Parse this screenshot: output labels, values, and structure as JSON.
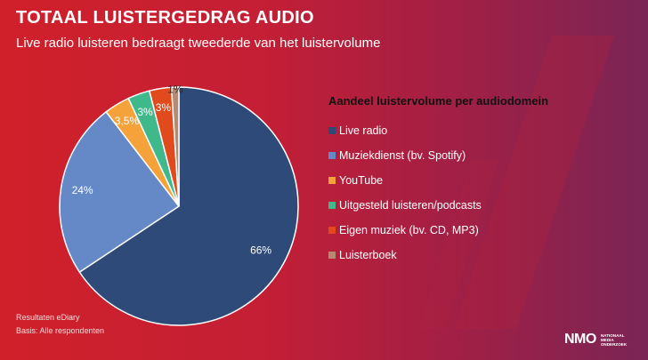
{
  "header": {
    "title": "TOTAAL LUISTERGEDRAG AUDIO",
    "subtitle": "Live radio luisteren bedraagt tweederde van het luistervolume"
  },
  "chart_data": {
    "type": "pie",
    "title": "Aandeel luistervolume per audiodomein",
    "legend_position": "right",
    "slices": [
      {
        "label": "Live radio",
        "value": 66,
        "display": "66%",
        "color": "#2e4a78"
      },
      {
        "label": "Muziekdienst (bv. Spotify)",
        "value": 24,
        "display": "24%",
        "color": "#6489c6"
      },
      {
        "label": "YouTube",
        "value": 3.5,
        "display": "3,5%",
        "color": "#f5a23a"
      },
      {
        "label": "Uitgesteld luisteren/podcasts",
        "value": 3,
        "display": "3%",
        "color": "#3fb98c"
      },
      {
        "label": "Eigen muziek (bv. CD, MP3)",
        "value": 3,
        "display": "3%",
        "color": "#e04a1d"
      },
      {
        "label": "Luisterboek",
        "value": 1,
        "display": "1%",
        "color": "#b58c73"
      }
    ]
  },
  "footer": {
    "source": "Resultaten eDiary",
    "basis": "Basis: Alle respondenten"
  },
  "logo": {
    "mark": "NMO",
    "line1": "NATIONAAL",
    "line2": "MEDIA",
    "line3": "ONDERZOEK"
  }
}
